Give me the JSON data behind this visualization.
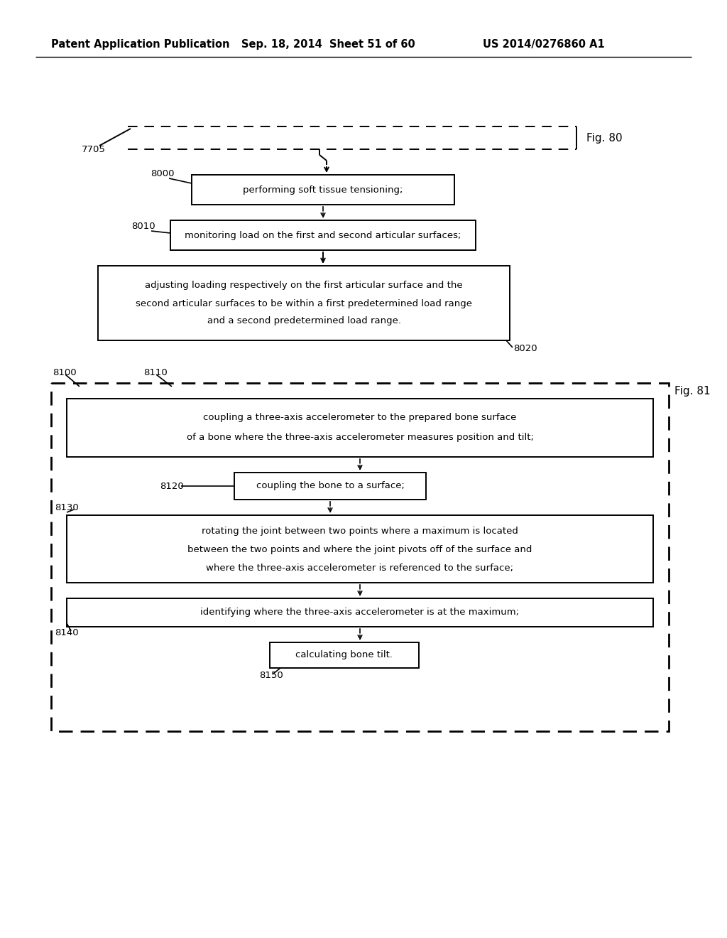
{
  "header_left": "Patent Application Publication",
  "header_mid": "Sep. 18, 2014  Sheet 51 of 60",
  "header_right": "US 2014/0276860 A1",
  "fig80_label": "Fig. 80",
  "fig81_label": "Fig. 81",
  "lbl_7705": "7705",
  "lbl_8000": "8000",
  "lbl_8010": "8010",
  "lbl_8020": "8020",
  "lbl_8100": "8100",
  "lbl_8110": "8110",
  "lbl_8120": "8120",
  "lbl_8130": "8130",
  "lbl_8140": "8140",
  "lbl_8150": "8150",
  "text_8000": "performing soft tissue tensioning;",
  "text_8010": "monitoring load on the first and second articular surfaces;",
  "text_8020_1": "adjusting loading respectively on the first articular surface and the",
  "text_8020_2": "second articular surfaces to be within a first predetermined load range",
  "text_8020_3": "and a second predetermined load range.",
  "text_8110_1": "coupling a three-axis accelerometer to the prepared bone surface",
  "text_8110_2": "of a bone where the three-axis accelerometer measures position and tilt;",
  "text_8120": "coupling the bone to a surface;",
  "text_8130_1": "rotating the joint between two points where a maximum is located",
  "text_8130_2": "between the two points and where the joint pivots off of the surface and",
  "text_8130_3": "where the three-axis accelerometer is referenced to the surface;",
  "text_8140": "identifying where the three-axis accelerometer is at the maximum;",
  "text_8150": "calculating bone tilt.",
  "bg": "#ffffff",
  "fg": "#000000"
}
